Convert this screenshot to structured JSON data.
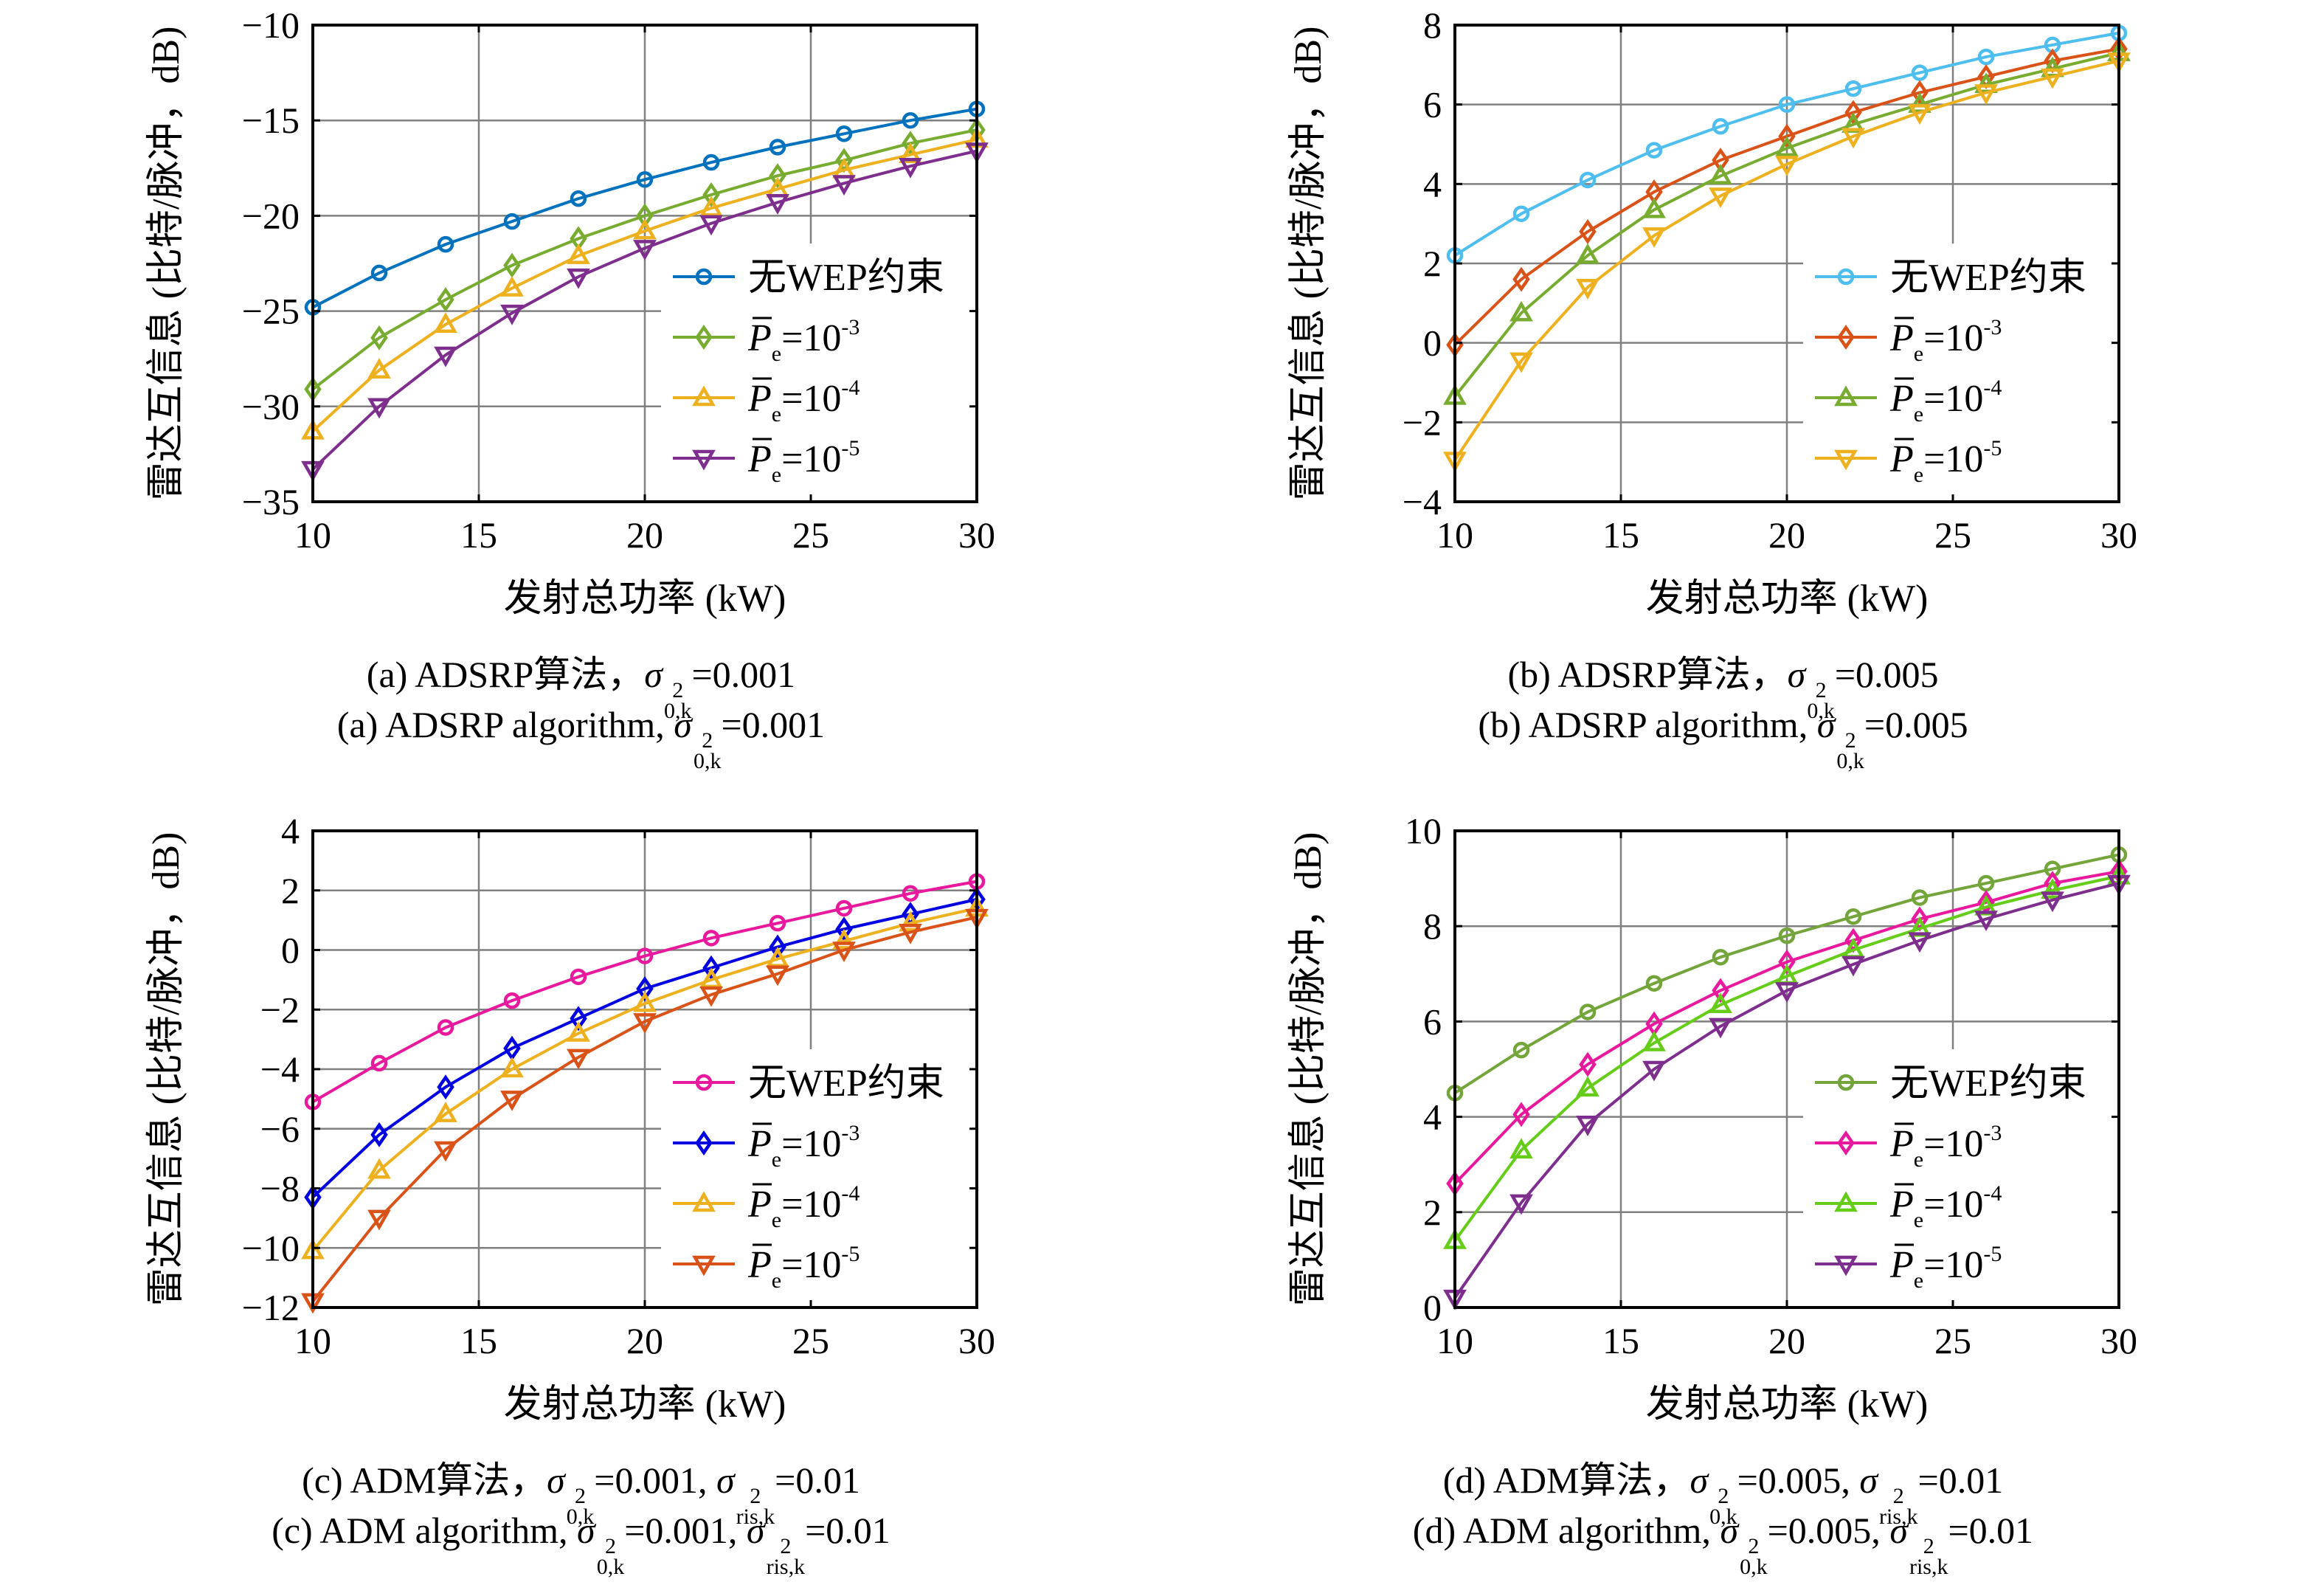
{
  "figure": {
    "ylabel": "雷达互信息 (比特/脉冲，dB)",
    "xlabel": "发射总功率 (kW)"
  },
  "chart_data": [
    {
      "id": "a",
      "type": "line",
      "title": "",
      "xlabel": "发射总功率 (kW)",
      "ylabel": "雷达互信息 (比特/脉冲，dB)",
      "x": [
        10,
        12,
        14,
        16,
        18,
        20,
        22,
        24,
        26,
        28,
        30
      ],
      "xlim": [
        10,
        30
      ],
      "ylim": [
        -35,
        -10
      ],
      "xticks": [
        10,
        15,
        20,
        25,
        30
      ],
      "yticks": [
        -35,
        -30,
        -25,
        -20,
        -15,
        -10
      ],
      "xtick_labels": [
        "10",
        "15",
        "20",
        "25",
        "30"
      ],
      "ytick_labels": [
        "−35",
        "−30",
        "−25",
        "−20",
        "−15",
        "−10"
      ],
      "grid": true,
      "legend_position": "lower-right",
      "series": [
        {
          "name": "无WEP约束",
          "legend_main": "无WEP约束",
          "legend_exp": "",
          "marker": "circle",
          "color": "#0072BD",
          "values": [
            -24.8,
            -23.0,
            -21.5,
            -20.3,
            -19.1,
            -18.1,
            -17.2,
            -16.4,
            -15.7,
            -15.0,
            -14.4
          ]
        },
        {
          "name": "P̄e=10^-3",
          "legend_main": "=10",
          "legend_exp": "-3",
          "marker": "diamond",
          "color": "#77AC30",
          "values": [
            -29.1,
            -26.4,
            -24.4,
            -22.6,
            -21.2,
            -20.0,
            -18.9,
            -17.9,
            -17.1,
            -16.2,
            -15.5
          ]
        },
        {
          "name": "P̄e=10^-4",
          "legend_main": "=10",
          "legend_exp": "-4",
          "marker": "triangle-up",
          "color": "#EDB120",
          "values": [
            -31.3,
            -28.1,
            -25.7,
            -23.8,
            -22.1,
            -20.8,
            -19.6,
            -18.6,
            -17.6,
            -16.8,
            -16.0
          ]
        },
        {
          "name": "P̄e=10^-5",
          "legend_main": "=10",
          "legend_exp": "-5",
          "marker": "triangle-down",
          "color": "#7E2F8E",
          "values": [
            -33.3,
            -30.0,
            -27.3,
            -25.1,
            -23.2,
            -21.7,
            -20.4,
            -19.3,
            -18.3,
            -17.4,
            -16.6
          ]
        }
      ],
      "caption_cn": {
        "prefix": "(a) ADSRP算法，",
        "sigma1_sup": "2",
        "sigma1_sub": "0,k",
        "sigma1_val": "=0.001",
        "sigma2_sup": "",
        "sigma2_sub": "",
        "sigma2_val": ""
      },
      "caption_en": {
        "prefix": "(a) ADSRP algorithm, ",
        "sigma1_sup": "2",
        "sigma1_sub": "0,k",
        "sigma1_val": "=0.001",
        "sigma2_sup": "",
        "sigma2_sub": "",
        "sigma2_val": ""
      }
    },
    {
      "id": "b",
      "type": "line",
      "title": "",
      "xlabel": "发射总功率 (kW)",
      "ylabel": "雷达互信息 (比特/脉冲，dB)",
      "x": [
        10,
        12,
        14,
        16,
        18,
        20,
        22,
        24,
        26,
        28,
        30
      ],
      "xlim": [
        10,
        30
      ],
      "ylim": [
        -4,
        8
      ],
      "xticks": [
        10,
        15,
        20,
        25,
        30
      ],
      "yticks": [
        -4,
        -2,
        0,
        2,
        4,
        6,
        8
      ],
      "xtick_labels": [
        "10",
        "15",
        "20",
        "25",
        "30"
      ],
      "ytick_labels": [
        "−4",
        "−2",
        "0",
        "2",
        "4",
        "6",
        "8"
      ],
      "grid": true,
      "legend_position": "lower-right",
      "series": [
        {
          "name": "无WEP约束",
          "legend_main": "无WEP约束",
          "legend_exp": "",
          "marker": "circle",
          "color": "#4DBEEE",
          "values": [
            2.2,
            3.25,
            4.1,
            4.85,
            5.45,
            6.0,
            6.4,
            6.8,
            7.2,
            7.5,
            7.8
          ]
        },
        {
          "name": "P̄e=10^-3",
          "legend_main": "=10",
          "legend_exp": "-3",
          "marker": "diamond",
          "color": "#D95319",
          "values": [
            -0.05,
            1.6,
            2.8,
            3.8,
            4.6,
            5.2,
            5.8,
            6.3,
            6.7,
            7.1,
            7.4
          ]
        },
        {
          "name": "P̄e=10^-4",
          "legend_main": "=10",
          "legend_exp": "-4",
          "marker": "triangle-up",
          "color": "#77AC30",
          "values": [
            -1.35,
            0.75,
            2.2,
            3.35,
            4.2,
            4.9,
            5.5,
            6.0,
            6.5,
            6.9,
            7.3
          ]
        },
        {
          "name": "P̄e=10^-5",
          "legend_main": "=10",
          "legend_exp": "-5",
          "marker": "triangle-down",
          "color": "#EDB120",
          "values": [
            -2.95,
            -0.45,
            1.4,
            2.7,
            3.7,
            4.5,
            5.2,
            5.8,
            6.3,
            6.7,
            7.1
          ]
        }
      ],
      "caption_cn": {
        "prefix": "(b) ADSRP算法，",
        "sigma1_sup": "2",
        "sigma1_sub": "0,k",
        "sigma1_val": "=0.005",
        "sigma2_sup": "",
        "sigma2_sub": "",
        "sigma2_val": ""
      },
      "caption_en": {
        "prefix": "(b) ADSRP algorithm, ",
        "sigma1_sup": "2",
        "sigma1_sub": "0,k",
        "sigma1_val": "=0.005",
        "sigma2_sup": "",
        "sigma2_sub": "",
        "sigma2_val": ""
      }
    },
    {
      "id": "c",
      "type": "line",
      "title": "",
      "xlabel": "发射总功率 (kW)",
      "ylabel": "雷达互信息 (比特/脉冲，dB)",
      "x": [
        10,
        12,
        14,
        16,
        18,
        20,
        22,
        24,
        26,
        28,
        30
      ],
      "xlim": [
        10,
        30
      ],
      "ylim": [
        -12,
        4
      ],
      "xticks": [
        10,
        15,
        20,
        25,
        30
      ],
      "yticks": [
        -12,
        -10,
        -8,
        -6,
        -4,
        -2,
        0,
        2,
        4
      ],
      "xtick_labels": [
        "10",
        "15",
        "20",
        "25",
        "30"
      ],
      "ytick_labels": [
        "−12",
        "−10",
        "−8",
        "−6",
        "−4",
        "−2",
        "0",
        "2",
        "4"
      ],
      "grid": true,
      "legend_position": "lower-right",
      "series": [
        {
          "name": "无WEP约束",
          "legend_main": "无WEP约束",
          "legend_exp": "",
          "marker": "circle",
          "color": "#E8199C",
          "values": [
            -5.1,
            -3.8,
            -2.6,
            -1.7,
            -0.9,
            -0.2,
            0.4,
            0.9,
            1.4,
            1.9,
            2.3
          ]
        },
        {
          "name": "P̄e=10^-3",
          "legend_main": "=10",
          "legend_exp": "-3",
          "marker": "diamond",
          "color": "#0000E0",
          "values": [
            -8.3,
            -6.2,
            -4.6,
            -3.3,
            -2.3,
            -1.3,
            -0.6,
            0.1,
            0.7,
            1.2,
            1.7
          ]
        },
        {
          "name": "P̄e=10^-4",
          "legend_main": "=10",
          "legend_exp": "-4",
          "marker": "triangle-up",
          "color": "#EDB120",
          "values": [
            -10.1,
            -7.4,
            -5.5,
            -4.0,
            -2.8,
            -1.8,
            -1.0,
            -0.3,
            0.3,
            0.9,
            1.4
          ]
        },
        {
          "name": "P̄e=10^-5",
          "legend_main": "=10",
          "legend_exp": "-5",
          "marker": "triangle-down",
          "color": "#D95319",
          "values": [
            -11.8,
            -9.0,
            -6.7,
            -5.0,
            -3.6,
            -2.4,
            -1.5,
            -0.8,
            0.0,
            0.6,
            1.1
          ]
        }
      ],
      "caption_cn": {
        "prefix": "(c) ADM算法，",
        "sigma1_sup": "2",
        "sigma1_sub": "0,k",
        "sigma1_val": "=0.001, ",
        "sigma2_sup": "2",
        "sigma2_sub": "ris,k",
        "sigma2_val": "=0.01"
      },
      "caption_en": {
        "prefix": "(c) ADM algorithm, ",
        "sigma1_sup": "2",
        "sigma1_sub": "0,k",
        "sigma1_val": "=0.001, ",
        "sigma2_sup": "2",
        "sigma2_sub": "ris,k",
        "sigma2_val": "=0.01"
      }
    },
    {
      "id": "d",
      "type": "line",
      "title": "",
      "xlabel": "发射总功率 (kW)",
      "ylabel": "雷达互信息 (比特/脉冲，dB)",
      "x": [
        10,
        12,
        14,
        16,
        18,
        20,
        22,
        24,
        26,
        28,
        30
      ],
      "xlim": [
        10,
        30
      ],
      "ylim": [
        0,
        10
      ],
      "xticks": [
        10,
        15,
        20,
        25,
        30
      ],
      "yticks": [
        0,
        2,
        4,
        6,
        8,
        10
      ],
      "xtick_labels": [
        "10",
        "15",
        "20",
        "25",
        "30"
      ],
      "ytick_labels": [
        "0",
        "2",
        "4",
        "6",
        "8",
        "10"
      ],
      "grid": true,
      "legend_position": "lower-right",
      "series": [
        {
          "name": "无WEP约束",
          "legend_main": "无WEP约束",
          "legend_exp": "",
          "marker": "circle",
          "color": "#73A53A",
          "values": [
            4.5,
            5.4,
            6.2,
            6.8,
            7.35,
            7.8,
            8.2,
            8.6,
            8.9,
            9.2,
            9.5
          ]
        },
        {
          "name": "P̄e=10^-3",
          "legend_main": "=10",
          "legend_exp": "-3",
          "marker": "diamond",
          "color": "#E8199C",
          "values": [
            2.6,
            4.05,
            5.1,
            5.95,
            6.65,
            7.25,
            7.7,
            8.15,
            8.5,
            8.9,
            9.15
          ]
        },
        {
          "name": "P̄e=10^-4",
          "legend_main": "=10",
          "legend_exp": "-4",
          "marker": "triangle-up",
          "color": "#66CC1A",
          "values": [
            1.4,
            3.3,
            4.6,
            5.55,
            6.35,
            6.95,
            7.5,
            7.95,
            8.4,
            8.75,
            9.05
          ]
        },
        {
          "name": "P̄e=10^-5",
          "legend_main": "=10",
          "legend_exp": "-5",
          "marker": "triangle-down",
          "color": "#7E2F8E",
          "values": [
            0.2,
            2.2,
            3.85,
            5.0,
            5.9,
            6.65,
            7.2,
            7.7,
            8.15,
            8.55,
            8.9
          ]
        }
      ],
      "caption_cn": {
        "prefix": "(d) ADM算法，",
        "sigma1_sup": "2",
        "sigma1_sub": "0,k",
        "sigma1_val": "=0.005, ",
        "sigma2_sup": "2",
        "sigma2_sub": "ris,k",
        "sigma2_val": "=0.01"
      },
      "caption_en": {
        "prefix": "(d) ADM algorithm, ",
        "sigma1_sup": "2",
        "sigma1_sub": "0,k",
        "sigma1_val": "=0.005, ",
        "sigma2_sup": "2",
        "sigma2_sub": "ris,k",
        "sigma2_val": "=0.01"
      }
    }
  ]
}
